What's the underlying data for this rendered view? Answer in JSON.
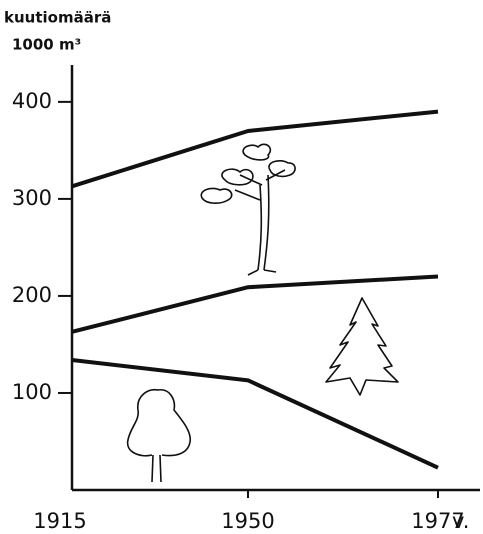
{
  "chart_data": {
    "type": "stacked-line",
    "y_label": "kuutiomäärä",
    "y_unit": "1000 m³",
    "x_label": "v.",
    "categories": [
      "1915",
      "1950",
      "1977"
    ],
    "series": [
      {
        "color": "#111111",
        "values": [
          134,
          113,
          23
        ]
      },
      {
        "color": "#111111",
        "values": [
          29,
          96,
          197
        ]
      },
      {
        "color": "#111111",
        "values": [
          150,
          161,
          170
        ]
      }
    ],
    "ylim": [
      0,
      438
    ],
    "yticks": [
      100,
      200,
      300,
      400
    ]
  }
}
